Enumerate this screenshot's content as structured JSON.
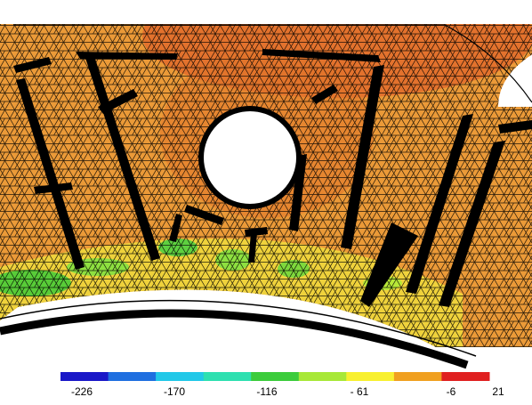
{
  "figure": {
    "type": "fem-contour",
    "mesh": "triangular"
  },
  "legend": {
    "colors": [
      "#1a18c8",
      "#1f6fe0",
      "#22c8e8",
      "#2ee0b0",
      "#3ccc3c",
      "#a8e838",
      "#f8f030",
      "#f0a020",
      "#e02020"
    ],
    "tick_labels": [
      "-226",
      "-170",
      "-116",
      "- 61",
      "-6",
      "21"
    ],
    "min": -226,
    "max": 21
  }
}
